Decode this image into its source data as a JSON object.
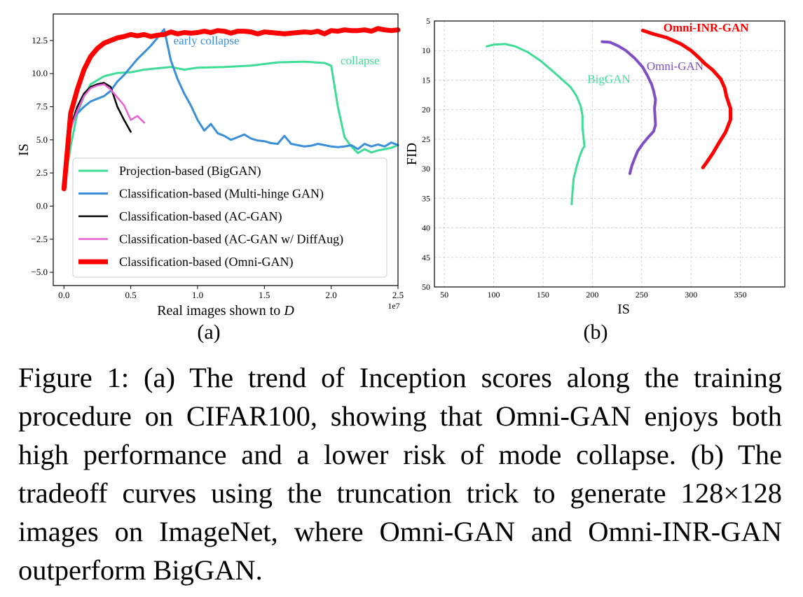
{
  "figure": {
    "panel_a_label": "(a)",
    "panel_b_label": "(b)",
    "caption": "Figure 1: (a) The trend of Inception scores along the training procedure on CIFAR100, showing that Omni-GAN enjoys both high performance and a lower risk of mode collapse. (b) The tradeoff curves using the truncation trick to generate 128×128 images on ImageNet, where Omni-GAN and Omni-INR-GAN outperform BigGAN."
  },
  "chart_data": [
    {
      "type": "line",
      "xlabel": "Real images shown to D",
      "xlabel_prefix": "Real images shown to ",
      "xlabel_var": "D",
      "ylabel": "IS",
      "x_offset_text": "1e7",
      "xlim": [
        -0.08,
        2.5
      ],
      "ylim": [
        -6,
        14.5
      ],
      "xticks": [
        0.0,
        0.5,
        1.0,
        1.5,
        2.0,
        2.5
      ],
      "xtick_labels": [
        "0.0",
        "0.5",
        "1.0",
        "1.5",
        "2.0",
        "2.5"
      ],
      "yticks": [
        -5.0,
        -2.5,
        0.0,
        2.5,
        5.0,
        7.5,
        10.0,
        12.5
      ],
      "ytick_labels": [
        "−5.0",
        "−2.5",
        "0.0",
        "2.5",
        "5.0",
        "7.5",
        "10.0",
        "12.5"
      ],
      "grid": false,
      "legend_position": "lower-left",
      "annotations": [
        {
          "text": "early collapse",
          "x": 0.82,
          "y": 12.2,
          "color": "#3a8fd8"
        },
        {
          "text": "collapse",
          "x": 2.07,
          "y": 10.7,
          "color": "#3fdc97"
        }
      ],
      "series": [
        {
          "name": "Projection-based (BigGAN)",
          "color": "#3fdc97",
          "width": 3,
          "x": [
            0.0,
            0.05,
            0.1,
            0.15,
            0.2,
            0.3,
            0.4,
            0.5,
            0.6,
            0.7,
            0.8,
            0.9,
            1.0,
            1.2,
            1.4,
            1.6,
            1.8,
            1.95,
            2.0,
            2.05,
            2.1,
            2.15,
            2.2,
            2.25,
            2.3,
            2.35,
            2.4,
            2.45,
            2.5
          ],
          "y": [
            1.3,
            4.5,
            7.0,
            8.3,
            9.2,
            9.8,
            10.05,
            10.1,
            10.3,
            10.4,
            10.5,
            10.3,
            10.45,
            10.5,
            10.6,
            10.85,
            10.9,
            10.8,
            10.6,
            7.5,
            5.2,
            4.5,
            4.0,
            4.3,
            4.05,
            4.2,
            4.3,
            4.4,
            4.6
          ]
        },
        {
          "name": "Classification-based (Multi-hinge GAN)",
          "color": "#3a8fd8",
          "width": 3,
          "x": [
            0.0,
            0.05,
            0.1,
            0.15,
            0.2,
            0.3,
            0.35,
            0.4,
            0.45,
            0.5,
            0.55,
            0.6,
            0.65,
            0.7,
            0.75,
            0.8,
            0.85,
            0.9,
            0.95,
            1.0,
            1.05,
            1.1,
            1.15,
            1.2,
            1.25,
            1.3,
            1.35,
            1.4,
            1.45,
            1.5,
            1.55,
            1.6,
            1.65,
            1.7,
            1.75,
            1.8,
            1.85,
            1.9,
            1.95,
            2.0,
            2.05,
            2.1,
            2.15,
            2.2,
            2.25,
            2.3,
            2.35,
            2.4,
            2.45,
            2.5
          ],
          "y": [
            1.3,
            6.3,
            7.0,
            7.5,
            7.9,
            8.3,
            8.7,
            9.4,
            9.9,
            10.5,
            11.1,
            11.6,
            12.1,
            12.7,
            13.35,
            11.0,
            9.6,
            8.5,
            7.6,
            6.5,
            5.7,
            6.2,
            5.5,
            5.3,
            5.0,
            5.2,
            5.4,
            5.1,
            4.95,
            4.9,
            4.75,
            4.7,
            5.3,
            4.7,
            4.6,
            4.5,
            4.55,
            4.7,
            4.6,
            4.5,
            4.45,
            4.5,
            4.6,
            4.3,
            4.7,
            4.5,
            4.65,
            4.5,
            4.8,
            4.6
          ]
        },
        {
          "name": "Classification-based (AC-GAN)",
          "color": "#000000",
          "width": 2.5,
          "x": [
            0.0,
            0.05,
            0.1,
            0.15,
            0.2,
            0.25,
            0.3,
            0.35,
            0.4,
            0.45,
            0.5
          ],
          "y": [
            1.3,
            6.0,
            7.5,
            8.5,
            9.0,
            9.2,
            9.3,
            9.0,
            7.5,
            6.5,
            5.6
          ]
        },
        {
          "name": "Classification-based (AC-GAN w/ DiffAug)",
          "color": "#e85fd6",
          "width": 2.5,
          "x": [
            0.0,
            0.05,
            0.1,
            0.15,
            0.2,
            0.25,
            0.3,
            0.35,
            0.4,
            0.45,
            0.5,
            0.55,
            0.6
          ],
          "y": [
            1.3,
            5.8,
            7.2,
            8.3,
            8.9,
            9.1,
            9.2,
            8.8,
            8.2,
            7.6,
            6.5,
            6.8,
            6.3
          ]
        },
        {
          "name": "Classification-based (Omni-GAN)",
          "color": "#ff0000",
          "width": 7,
          "x": [
            0.0,
            0.05,
            0.1,
            0.15,
            0.2,
            0.25,
            0.3,
            0.35,
            0.4,
            0.45,
            0.5,
            0.55,
            0.6,
            0.65,
            0.7,
            0.75,
            0.8,
            0.85,
            0.9,
            0.95,
            1.0,
            1.05,
            1.1,
            1.15,
            1.2,
            1.25,
            1.3,
            1.35,
            1.4,
            1.45,
            1.5,
            1.55,
            1.6,
            1.65,
            1.7,
            1.75,
            1.8,
            1.85,
            1.9,
            1.95,
            2.0,
            2.05,
            2.1,
            2.15,
            2.2,
            2.25,
            2.3,
            2.35,
            2.4,
            2.45,
            2.5
          ],
          "y": [
            1.3,
            7.0,
            8.8,
            10.3,
            11.3,
            11.9,
            12.3,
            12.5,
            12.7,
            12.8,
            12.95,
            12.85,
            12.95,
            12.8,
            12.9,
            12.95,
            13.15,
            13.0,
            13.1,
            13.05,
            13.1,
            13.2,
            13.1,
            13.25,
            13.2,
            13.05,
            13.2,
            13.2,
            13.15,
            13.0,
            13.15,
            13.1,
            13.05,
            13.0,
            13.05,
            13.1,
            13.15,
            13.1,
            13.2,
            13.0,
            13.25,
            13.2,
            13.3,
            13.25,
            13.25,
            13.3,
            13.2,
            13.4,
            13.3,
            13.25,
            13.3
          ]
        }
      ]
    },
    {
      "type": "line",
      "xlabel": "IS",
      "ylabel": "FID",
      "xlim": [
        40,
        395
      ],
      "ylim": [
        50,
        5
      ],
      "y_inverted": true,
      "xticks": [
        50,
        100,
        150,
        200,
        250,
        300,
        350
      ],
      "yticks": [
        5,
        10,
        15,
        20,
        25,
        30,
        35,
        40,
        45,
        50
      ],
      "grid": true,
      "legend_position": "none",
      "series": [
        {
          "name": "BigGAN",
          "label_position": [
            195,
            15.5
          ],
          "color": "#3fdc97",
          "width": 3,
          "x": [
            93,
            100,
            112,
            122,
            135,
            148,
            160,
            170,
            178,
            184,
            188,
            190,
            190,
            192,
            190,
            187,
            184,
            181,
            180,
            179
          ],
          "y": [
            9.3,
            9.0,
            8.9,
            9.3,
            10.3,
            11.8,
            13.5,
            15.0,
            16.2,
            17.7,
            19.3,
            21.0,
            23.0,
            26.2,
            26.7,
            28.0,
            29.7,
            31.7,
            33.7,
            36.0
          ]
        },
        {
          "name": "Omni-GAN",
          "label_position": [
            255,
            13.3
          ],
          "color": "#7e4fc4",
          "width": 4,
          "x": [
            210,
            218,
            226,
            234,
            243,
            251,
            256,
            260,
            262,
            264,
            263,
            264,
            262,
            257,
            251,
            246,
            243,
            240,
            238
          ],
          "y": [
            8.5,
            8.6,
            9.2,
            10.0,
            11.3,
            12.8,
            14.3,
            15.7,
            16.8,
            18.3,
            19.8,
            22.6,
            23.7,
            24.6,
            25.8,
            27.0,
            28.2,
            29.5,
            30.8
          ]
        },
        {
          "name": "Omni-INR-GAN",
          "label_position": [
            272,
            6.8
          ],
          "label_bold": true,
          "color": "#ff0000",
          "width": 5,
          "x": [
            251,
            262,
            275,
            290,
            300,
            308,
            314,
            322,
            330,
            334,
            336,
            340,
            340,
            335,
            328,
            322,
            316,
            312
          ],
          "y": [
            6.6,
            7.2,
            7.8,
            8.9,
            10.0,
            11.2,
            12.2,
            13.3,
            14.8,
            16.3,
            17.8,
            19.8,
            21.7,
            23.8,
            25.7,
            27.4,
            28.9,
            29.8
          ]
        }
      ]
    }
  ]
}
